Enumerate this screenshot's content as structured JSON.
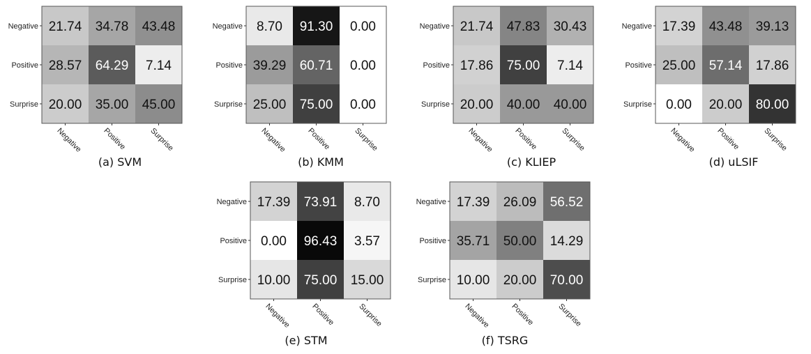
{
  "chart_data": [
    {
      "type": "heatmap",
      "title": "(a) SVM",
      "row_labels": [
        "Negative",
        "Positive",
        "Surprise"
      ],
      "col_labels": [
        "Negative",
        "Positive",
        "Surprise"
      ],
      "values": [
        [
          "21.74",
          "34.78",
          "43.48"
        ],
        [
          "28.57",
          "64.29",
          "7.14"
        ],
        [
          "20.00",
          "35.00",
          "45.00"
        ]
      ]
    },
    {
      "type": "heatmap",
      "title": "(b) KMM",
      "row_labels": [
        "Negative",
        "Positive",
        "Surprise"
      ],
      "col_labels": [
        "Negative",
        "Positive",
        "Surprise"
      ],
      "values": [
        [
          "8.70",
          "91.30",
          "0.00"
        ],
        [
          "39.29",
          "60.71",
          "0.00"
        ],
        [
          "25.00",
          "75.00",
          "0.00"
        ]
      ]
    },
    {
      "type": "heatmap",
      "title": "(c) KLIEP",
      "row_labels": [
        "Negative",
        "Positive",
        "Surprise"
      ],
      "col_labels": [
        "Negative",
        "Positive",
        "Surprise"
      ],
      "values": [
        [
          "21.74",
          "47.83",
          "30.43"
        ],
        [
          "17.86",
          "75.00",
          "7.14"
        ],
        [
          "20.00",
          "40.00",
          "40.00"
        ]
      ]
    },
    {
      "type": "heatmap",
      "title": "(d) uLSIF",
      "row_labels": [
        "Negative",
        "Positive",
        "Surprise"
      ],
      "col_labels": [
        "Negative",
        "Positive",
        "Surprise"
      ],
      "values": [
        [
          "17.39",
          "43.48",
          "39.13"
        ],
        [
          "25.00",
          "57.14",
          "17.86"
        ],
        [
          "0.00",
          "20.00",
          "80.00"
        ]
      ]
    },
    {
      "type": "heatmap",
      "title": "(e) STM",
      "row_labels": [
        "Negative",
        "Positive",
        "Surprise"
      ],
      "col_labels": [
        "Negative",
        "Positive",
        "Surprise"
      ],
      "values": [
        [
          "17.39",
          "73.91",
          "8.70"
        ],
        [
          "0.00",
          "96.43",
          "3.57"
        ],
        [
          "10.00",
          "75.00",
          "15.00"
        ]
      ]
    },
    {
      "type": "heatmap",
      "title": "(f) TSRG",
      "row_labels": [
        "Negative",
        "Positive",
        "Surprise"
      ],
      "col_labels": [
        "Negative",
        "Positive",
        "Surprise"
      ],
      "values": [
        [
          "17.39",
          "26.09",
          "56.52"
        ],
        [
          "35.71",
          "50.00",
          "14.29"
        ],
        [
          "10.00",
          "20.00",
          "70.00"
        ]
      ]
    }
  ]
}
